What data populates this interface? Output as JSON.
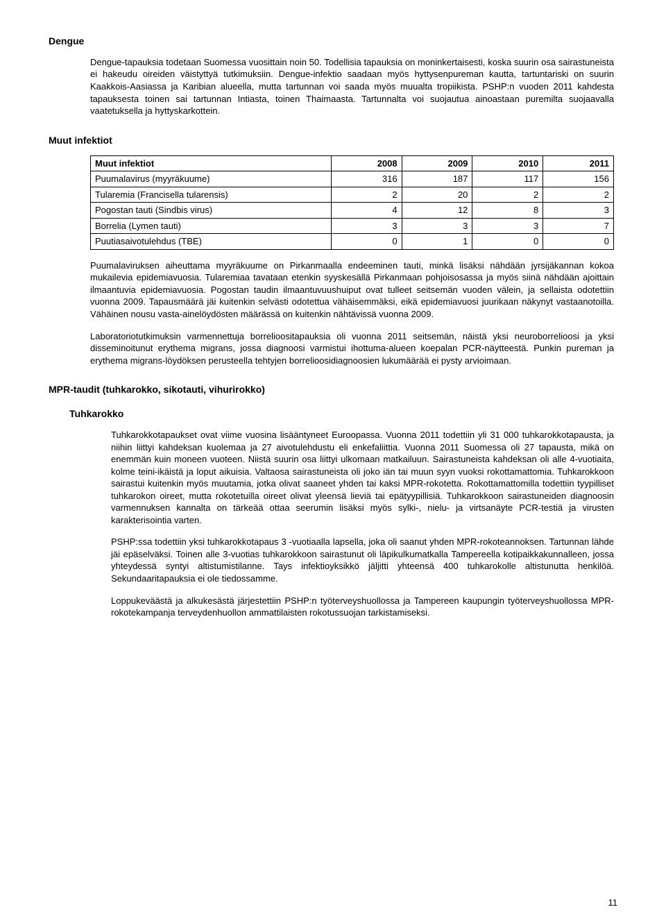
{
  "dengue": {
    "heading": "Dengue",
    "p1": "Dengue-tapauksia todetaan Suomessa vuosittain noin 50. Todellisia tapauksia on moninkertaisesti, koska suurin osa sairastuneista ei hakeudu oireiden väistyttyä tutkimuksiin. Dengue-infektio saadaan myös hyttysenpureman kautta, tartuntariski on suurin Kaakkois-Aasiassa ja Karibian alueella, mutta tartunnan voi saada myös muualta tropiikista. PSHP:n vuoden 2011 kahdesta tapauksesta toinen sai tartunnan Intiasta, toinen Thaimaasta. Tartunnalta voi suojautua ainoastaan puremilta suojaavalla vaatetuksella ja hyttyskarkottein."
  },
  "muut": {
    "heading": "Muut infektiot",
    "table": {
      "header": [
        "Muut infektiot",
        "2008",
        "2009",
        "2010",
        "2011"
      ],
      "rows": [
        [
          "Puumalavirus (myyräkuume)",
          "316",
          "187",
          "117",
          "156"
        ],
        [
          "Tularemia (Francisella tularensis)",
          "2",
          "20",
          "2",
          "2"
        ],
        [
          "Pogostan tauti (Sindbis virus)",
          "4",
          "12",
          "8",
          "3"
        ],
        [
          "Borrelia (Lymen tauti)",
          "3",
          "3",
          "3",
          "7"
        ],
        [
          "Puutiasaivotulehdus (TBE)",
          "0",
          "1",
          "0",
          "0"
        ]
      ],
      "col_widths": [
        "46%",
        "13.5%",
        "13.5%",
        "13.5%",
        "13.5%"
      ]
    },
    "p1": "Puumalaviruksen aiheuttama myyräkuume on Pirkanmaalla endeeminen tauti, minkä lisäksi nähdään jyrsijäkannan kokoa mukailevia epidemiavuosia. Tularemiaa tavataan etenkin syyskesällä Pirkanmaan pohjoisosassa ja myös siinä nähdään ajoittain ilmaantuvia epidemiavuosia. Pogostan taudin ilmaantuvuushuiput ovat tulleet seitsemän vuoden välein, ja sellaista odotettiin vuonna 2009. Tapausmäärä jäi kuitenkin selvästi odotettua vähäisemmäksi, eikä epidemiavuosi juurikaan näkynyt vastaanotoilla. Vähäinen nousu vasta-ainelöydösten määrässä on kuitenkin nähtävissä vuonna 2009.",
    "p2": "Laboratoriotutkimuksin varmennettuja borrelioositapauksia oli vuonna 2011 seitsemän, näistä yksi neuroborrelioosi ja yksi disseminoitunut erythema migrans, jossa diagnoosi varmistui ihottuma-alueen koepalan PCR-näytteestä. Punkin pureman ja erythema migrans-löydöksen perusteella tehtyjen borrelioosidiagnoosien lukumäärää ei pysty arvioimaan."
  },
  "mpr": {
    "heading": "MPR-taudit (tuhkarokko, sikotauti, vihurirokko)",
    "tuhkarokko": {
      "heading": "Tuhkarokko",
      "p1": "Tuhkarokkotapaukset ovat viime vuosina lisääntyneet Euroopassa. Vuonna 2011 todettiin yli 31 000 tuhkarokkotapausta, ja niihin liittyi kahdeksan kuolemaa ja 27 aivotulehdustu eli enkefaliittia. Vuonna 2011 Suomessa oli 27 tapausta, mikä on enemmän kuin moneen vuoteen. Niistä suurin osa liittyi ulkomaan matkailuun. Sairastuneista kahdeksan oli alle 4-vuotiaita, kolme teini-ikäistä ja loput aikuisia. Valtaosa sairastuneista oli joko iän tai muun syyn vuoksi rokottamattomia. Tuhkarokkoon sairastui kuitenkin myös muutamia, jotka olivat saaneet yhden tai kaksi MPR-rokotetta. Rokottamattomilla todettiin tyypilliset tuhkarokon oireet, mutta rokotetuilla oireet olivat yleensä lieviä tai epätyypillisiä. Tuhkarokkoon sairastuneiden diagnoosin varmennuksen kannalta on tärkeää ottaa seerumin lisäksi myös sylki-, nielu- ja virtsanäyte PCR-testiä ja virusten karakterisointia varten.",
      "p2": "PSHP:ssa todettiin yksi tuhkarokkotapaus 3 -vuotiaalla lapsella, joka oli saanut yhden MPR-rokoteannoksen. Tartunnan lähde jäi epäselväksi. Toinen alle 3-vuotias tuhkarokkoon sairastunut oli läpikulkumatkalla Tampereella kotipaikkakunnalleen, jossa yhteydessä syntyi altistumistilanne. Tays infektioyksikkö jäljitti yhteensä 400 tuhkarokolle altistunutta henkilöä. Sekundaaritapauksia ei ole tiedossamme.",
      "p3": "Loppukeväästä ja alkukesästä järjestettiin PSHP:n työterveyshuollossa ja Tampereen kaupungin työterveyshuollossa MPR-rokotekampanja terveydenhuollon ammattilaisten rokotussuojan tarkistamiseksi."
    }
  },
  "page_number": "11"
}
